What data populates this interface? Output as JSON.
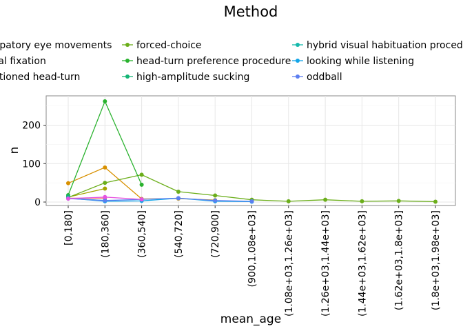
{
  "chart_data": {
    "type": "line",
    "title": "",
    "xlabel": "mean_age",
    "ylabel": "n",
    "legend_title": "Method",
    "legend_position": "top",
    "grid": true,
    "ylim": [
      -10,
      275
    ],
    "y_ticks": [
      0,
      100,
      200
    ],
    "categories": [
      "[0,180]",
      "(180,360]",
      "(360,540]",
      "(540,720]",
      "(720,900]",
      "(900,1.08e+03]",
      "(1.08e+03,1.26e+03]",
      "(1.26e+03,1.44e+03]",
      "(1.44e+03,1.62e+03]",
      "(1.62e+03,1.8e+03]",
      "(1.8e+03,1.98e+03]"
    ],
    "series": [
      {
        "name": "anticipatory eye movements",
        "color": "#F8766D",
        "values": [
          10,
          10,
          null,
          null,
          null,
          null,
          null,
          null,
          null,
          null,
          null
        ]
      },
      {
        "name": "central fixation",
        "color": "#D89000",
        "values": [
          49,
          90,
          8,
          9,
          5,
          null,
          null,
          null,
          null,
          null,
          null
        ]
      },
      {
        "name": "conditioned head-turn",
        "color": "#A3A500",
        "values": [
          13,
          35,
          null,
          null,
          null,
          null,
          null,
          null,
          null,
          null,
          null
        ]
      },
      {
        "name": "forced-choice",
        "color": "#6BAE1A",
        "values": [
          12,
          50,
          71,
          27,
          17,
          6,
          2,
          6,
          2,
          3,
          1
        ]
      },
      {
        "name": "head-turn preference procedure",
        "color": "#29B22E",
        "values": [
          18,
          262,
          45,
          null,
          null,
          null,
          null,
          null,
          null,
          null,
          null
        ]
      },
      {
        "name": "high-amplitude sucking",
        "color": "#14B575",
        "values": [
          15,
          null,
          null,
          null,
          null,
          null,
          null,
          null,
          null,
          null,
          null
        ]
      },
      {
        "name": "hybrid visual habituation procedure",
        "color": "#15B9AC",
        "values": [
          10,
          4,
          null,
          null,
          null,
          null,
          null,
          null,
          null,
          null,
          null
        ]
      },
      {
        "name": "looking while listening",
        "color": "#12A5E8",
        "values": [
          10,
          2,
          3,
          10,
          2,
          1,
          null,
          null,
          null,
          null,
          null
        ]
      },
      {
        "name": "oddball",
        "color": "#5C7EF0",
        "values": [
          9,
          4,
          7,
          10,
          4,
          2,
          null,
          null,
          null,
          null,
          null
        ]
      },
      {
        "name": "",
        "color": "#E653E0",
        "values": [
          9,
          13,
          7,
          null,
          null,
          null,
          null,
          null,
          null,
          null,
          null
        ]
      }
    ]
  }
}
